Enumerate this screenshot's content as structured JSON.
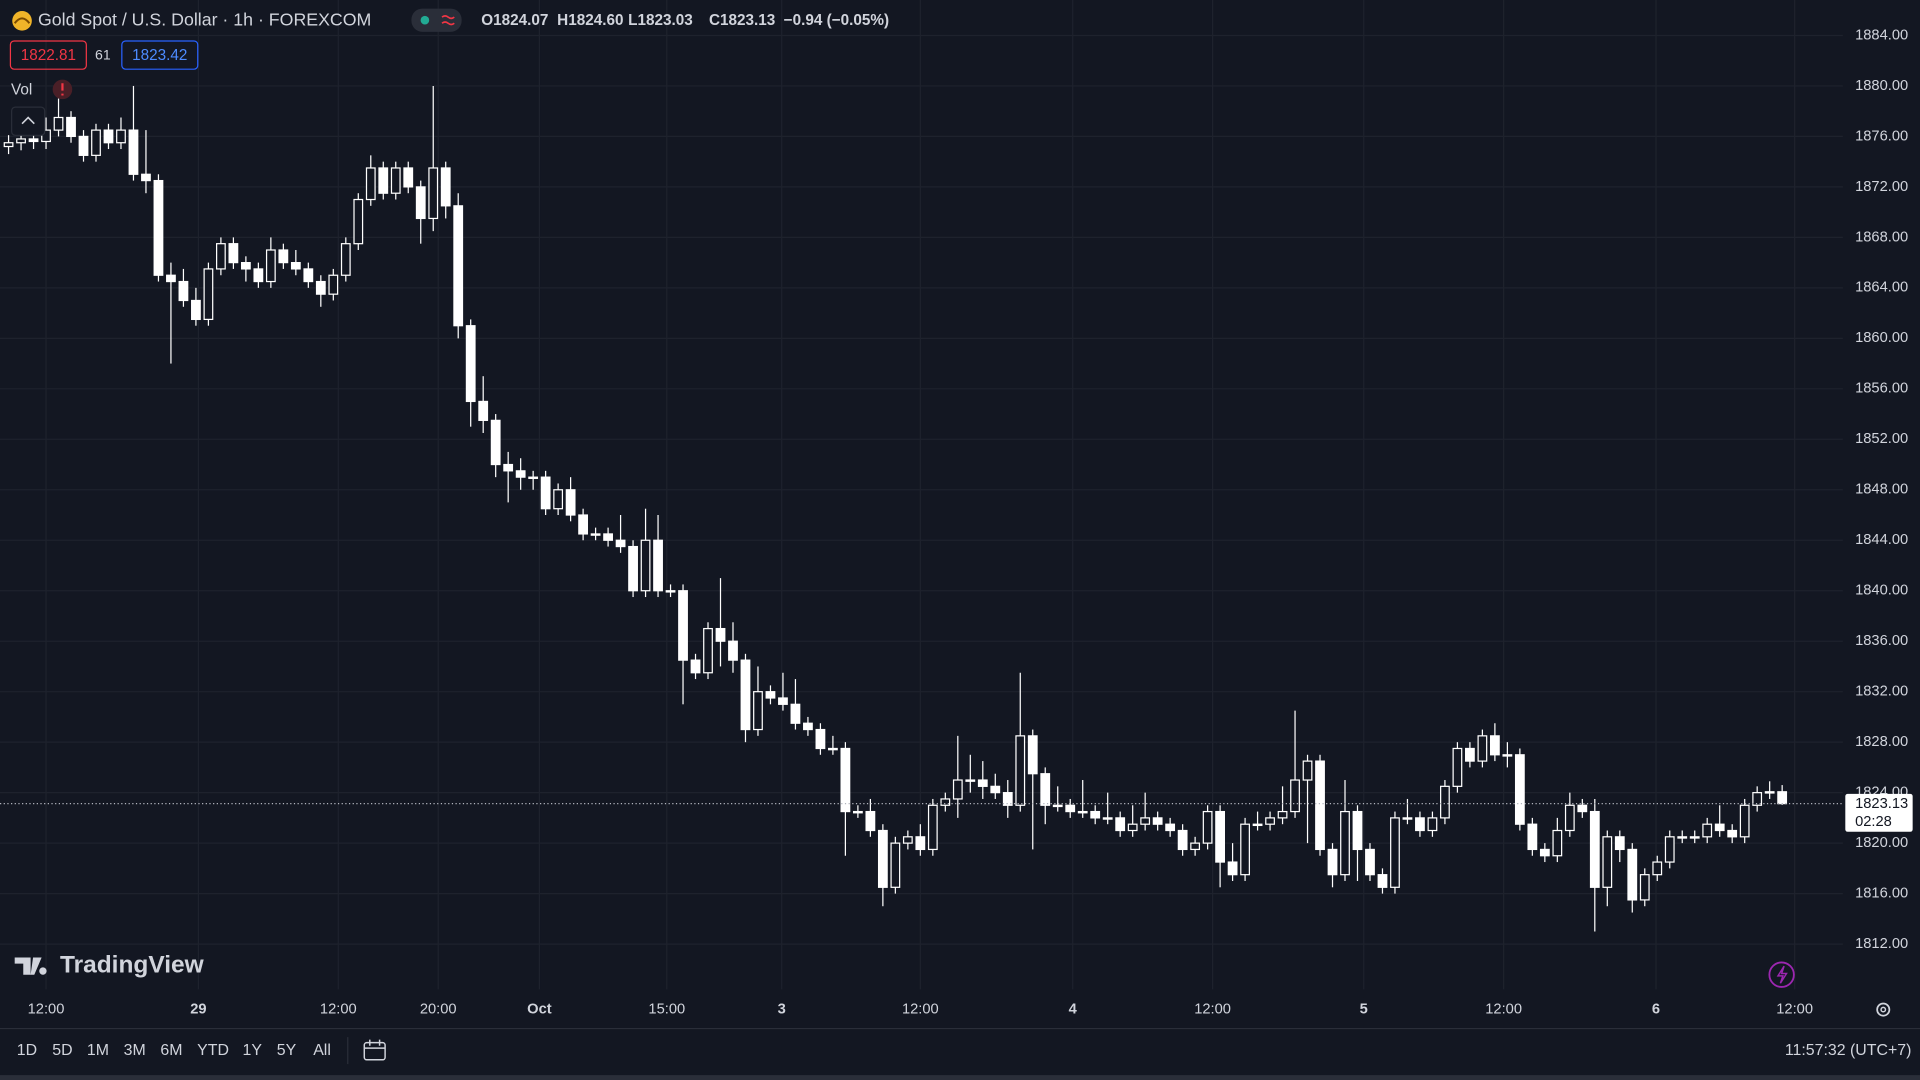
{
  "header": {
    "legend": {
      "open": "O1824.07",
      "high": "H1824.60",
      "low": "L1823.03",
      "close": "C1823.13",
      "change": "−0.94 (−0.05%)"
    },
    "bid": "1822.81",
    "spread": "61",
    "ask": "1823.42",
    "volume_label": "Vol"
  },
  "logo": "TradingView",
  "toolbar": {
    "ranges": [
      "1D",
      "5D",
      "1M",
      "3M",
      "6M",
      "YTD",
      "1Y",
      "5Y",
      "All"
    ],
    "clock": "11:57:32 (UTC+7)"
  },
  "chart_data": {
    "type": "candlestick",
    "title": "Gold Spot / U.S. Dollar · 1h · FOREXCOM",
    "up_color": "#131722",
    "down_color": "#ffffff",
    "wick_color": "#ffffff",
    "grid": true,
    "ylim": [
      1808.41,
      1886.81
    ],
    "yticks": [
      {
        "value": 1812,
        "label": "1812.00"
      },
      {
        "value": 1816,
        "label": "1816.00"
      },
      {
        "value": 1820,
        "label": "1820.00"
      },
      {
        "value": 1824,
        "label": "1824.00"
      },
      {
        "value": 1828,
        "label": "1828.00"
      },
      {
        "value": 1832,
        "label": "1832.00"
      },
      {
        "value": 1836,
        "label": "1836.00"
      },
      {
        "value": 1840,
        "label": "1840.00"
      },
      {
        "value": 1844,
        "label": "1844.00"
      },
      {
        "value": 1848,
        "label": "1848.00"
      },
      {
        "value": 1852,
        "label": "1852.00"
      },
      {
        "value": 1856,
        "label": "1856.00"
      },
      {
        "value": 1860,
        "label": "1860.00"
      },
      {
        "value": 1864,
        "label": "1864.00"
      },
      {
        "value": 1868,
        "label": "1868.00"
      },
      {
        "value": 1872,
        "label": "1872.00"
      },
      {
        "value": 1876,
        "label": "1876.00"
      },
      {
        "value": 1880,
        "label": "1880.00"
      },
      {
        "value": 1884,
        "label": "1884.00"
      }
    ],
    "xlim": [
      -0.686,
      146.86
    ],
    "xticks": [
      {
        "value": 3.0,
        "label": "12:00"
      },
      {
        "value": 15.2,
        "label": "29"
      },
      {
        "value": 26.4,
        "label": "12:00"
      },
      {
        "value": 34.4,
        "label": "20:00"
      },
      {
        "value": 42.5,
        "label": "Oct"
      },
      {
        "value": 52.7,
        "label": "15:00"
      },
      {
        "value": 61.9,
        "label": "3"
      },
      {
        "value": 73.0,
        "label": "12:00"
      },
      {
        "value": 85.2,
        "label": "4"
      },
      {
        "value": 96.4,
        "label": "12:00"
      },
      {
        "value": 108.5,
        "label": "5"
      },
      {
        "value": 119.7,
        "label": "12:00"
      },
      {
        "value": 131.9,
        "label": "6"
      },
      {
        "value": 143.0,
        "label": "12:00"
      }
    ],
    "last_price": 1823.13,
    "countdown": "02:28",
    "open": [
      1875.2,
      1875.5,
      1875.8,
      1875.6,
      1876.5,
      1877.5,
      1876.0,
      1874.5,
      1876.5,
      1875.5,
      1876.5,
      1873.0,
      1872.5,
      1865.0,
      1864.5,
      1863.0,
      1861.5,
      1865.5,
      1867.5,
      1866.0,
      1865.5,
      1864.5,
      1867.0,
      1866.0,
      1865.5,
      1864.5,
      1863.5,
      1865.0,
      1867.5,
      1871.0,
      1873.5,
      1871.5,
      1873.5,
      1872.0,
      1869.5,
      1873.5,
      1870.5,
      1861.0,
      1855.0,
      1853.5,
      1850.0,
      1849.5,
      1849.0,
      1849.0,
      1846.5,
      1848.0,
      1846.0,
      1844.5,
      1844.5,
      1844.0,
      1843.5,
      1840.0,
      1844.0,
      1840.0,
      1840.0,
      1834.5,
      1833.5,
      1837.0,
      1836.0,
      1834.5,
      1829.0,
      1832.0,
      1831.5,
      1831.0,
      1829.5,
      1829.0,
      1827.5,
      1827.5,
      1822.5,
      1822.5,
      1821.0,
      1816.5,
      1820.0,
      1820.5,
      1819.5,
      1823.0,
      1823.5,
      1825.0,
      1825.0,
      1824.5,
      1824.0,
      1823.0,
      1828.5,
      1825.5,
      1823.0,
      1823.0,
      1822.5,
      1822.5,
      1822.0,
      1822.0,
      1821.0,
      1821.5,
      1822.0,
      1821.5,
      1821.0,
      1819.5,
      1820.0,
      1822.5,
      1818.5,
      1817.5,
      1821.5,
      1821.5,
      1822.0,
      1822.5,
      1825.0,
      1826.5,
      1819.5,
      1817.5,
      1822.5,
      1819.5,
      1817.5,
      1816.5,
      1822.0,
      1822.0,
      1821.0,
      1822.0,
      1824.5,
      1827.5,
      1826.5,
      1828.5,
      1827.0,
      1827.0,
      1821.5,
      1819.5,
      1819.0,
      1821.0,
      1823.0,
      1822.5,
      1816.5,
      1820.5,
      1819.5,
      1815.5,
      1817.5,
      1818.5,
      1820.5,
      1820.5,
      1820.5,
      1821.5,
      1821.0,
      1820.5,
      1823.0,
      1824.0,
      1824.07
    ],
    "high": [
      1876.1,
      1876.4,
      1876.4,
      1877.5,
      1879.0,
      1878.0,
      1876.5,
      1877.0,
      1877.0,
      1877.5,
      1880.0,
      1876.5,
      1873.0,
      1866.0,
      1865.5,
      1864.0,
      1866.0,
      1868.0,
      1868.0,
      1866.5,
      1866.0,
      1868.0,
      1867.5,
      1867.0,
      1866.0,
      1865.0,
      1865.5,
      1868.0,
      1871.5,
      1874.5,
      1874.0,
      1874.0,
      1874.0,
      1872.5,
      1880.0,
      1874.0,
      1871.5,
      1861.5,
      1857.0,
      1854.0,
      1851.0,
      1850.5,
      1849.5,
      1849.5,
      1848.5,
      1849.0,
      1846.5,
      1845.0,
      1845.0,
      1846.0,
      1844.0,
      1846.5,
      1846.0,
      1840.5,
      1840.5,
      1835.0,
      1837.5,
      1841.0,
      1837.5,
      1835.0,
      1834.0,
      1832.5,
      1833.5,
      1833.0,
      1830.0,
      1829.5,
      1828.5,
      1828.0,
      1823.0,
      1823.5,
      1821.5,
      1820.5,
      1821.0,
      1821.5,
      1823.5,
      1824.0,
      1828.5,
      1827.0,
      1826.5,
      1825.5,
      1825.0,
      1833.5,
      1829.0,
      1826.0,
      1824.5,
      1823.5,
      1825.0,
      1823.0,
      1824.0,
      1822.5,
      1823.0,
      1824.0,
      1822.5,
      1822.0,
      1821.5,
      1820.5,
      1823.0,
      1823.0,
      1820.0,
      1822.0,
      1822.5,
      1822.5,
      1824.5,
      1830.5,
      1827.0,
      1827.0,
      1820.0,
      1825.0,
      1823.0,
      1820.0,
      1818.0,
      1822.5,
      1823.5,
      1822.5,
      1822.5,
      1825.0,
      1828.0,
      1828.0,
      1829.0,
      1829.5,
      1828.0,
      1827.5,
      1822.0,
      1820.0,
      1822.0,
      1824.0,
      1823.5,
      1823.5,
      1821.0,
      1821.0,
      1820.0,
      1818.0,
      1819.0,
      1821.0,
      1821.0,
      1821.0,
      1822.0,
      1823.0,
      1821.5,
      1823.5,
      1824.5,
      1824.9,
      1824.6
    ],
    "low": [
      1874.6,
      1874.9,
      1875.0,
      1875.0,
      1876.0,
      1875.5,
      1874.0,
      1874.0,
      1875.0,
      1875.0,
      1872.5,
      1871.5,
      1864.5,
      1858.0,
      1862.5,
      1861.0,
      1861.0,
      1865.0,
      1865.5,
      1864.5,
      1864.0,
      1864.0,
      1865.5,
      1865.0,
      1864.0,
      1862.5,
      1863.0,
      1864.5,
      1867.0,
      1870.5,
      1871.0,
      1871.0,
      1871.5,
      1867.5,
      1868.5,
      1869.5,
      1860.0,
      1853.0,
      1852.5,
      1849.0,
      1847.0,
      1848.0,
      1848.0,
      1846.0,
      1846.0,
      1845.5,
      1844.0,
      1844.0,
      1843.5,
      1843.0,
      1839.5,
      1839.5,
      1839.5,
      1839.5,
      1831.0,
      1833.0,
      1833.0,
      1834.0,
      1833.5,
      1828.0,
      1828.5,
      1831.0,
      1830.5,
      1829.0,
      1828.5,
      1827.0,
      1827.0,
      1819.0,
      1822.0,
      1820.5,
      1815.0,
      1816.0,
      1819.5,
      1819.0,
      1819.0,
      1822.5,
      1822.0,
      1824.0,
      1823.5,
      1823.5,
      1822.0,
      1822.5,
      1819.5,
      1821.5,
      1822.5,
      1822.0,
      1822.0,
      1821.5,
      1821.5,
      1820.5,
      1820.5,
      1821.0,
      1821.0,
      1820.5,
      1819.0,
      1819.0,
      1819.5,
      1816.5,
      1817.0,
      1817.0,
      1821.0,
      1821.0,
      1821.5,
      1822.0,
      1820.0,
      1819.0,
      1816.5,
      1817.0,
      1817.0,
      1817.0,
      1816.0,
      1816.0,
      1821.5,
      1820.5,
      1820.5,
      1821.5,
      1824.0,
      1826.0,
      1826.0,
      1826.5,
      1826.0,
      1821.0,
      1819.0,
      1818.5,
      1818.5,
      1820.5,
      1822.0,
      1813.0,
      1815.0,
      1818.5,
      1814.5,
      1815.0,
      1817.0,
      1818.0,
      1820.0,
      1820.0,
      1820.0,
      1820.5,
      1820.0,
      1820.0,
      1822.5,
      1823.5,
      1823.03
    ],
    "close": [
      1875.5,
      1875.8,
      1875.6,
      1876.5,
      1877.5,
      1876.0,
      1874.5,
      1876.5,
      1875.5,
      1876.5,
      1873.0,
      1872.5,
      1865.0,
      1864.5,
      1863.0,
      1861.5,
      1865.5,
      1867.5,
      1866.0,
      1865.5,
      1864.5,
      1867.0,
      1866.0,
      1865.5,
      1864.5,
      1863.5,
      1865.0,
      1867.5,
      1871.0,
      1873.5,
      1871.5,
      1873.5,
      1872.0,
      1869.5,
      1873.5,
      1870.5,
      1861.0,
      1855.0,
      1853.5,
      1850.0,
      1849.5,
      1849.0,
      1849.0,
      1846.5,
      1848.0,
      1846.0,
      1844.5,
      1844.5,
      1844.0,
      1843.5,
      1840.0,
      1844.0,
      1840.0,
      1840.0,
      1834.5,
      1833.5,
      1837.0,
      1836.0,
      1834.5,
      1829.0,
      1832.0,
      1831.5,
      1831.0,
      1829.5,
      1829.0,
      1827.5,
      1827.5,
      1822.5,
      1822.5,
      1821.0,
      1816.5,
      1820.0,
      1820.5,
      1819.5,
      1823.0,
      1823.5,
      1825.0,
      1825.0,
      1824.5,
      1824.0,
      1823.0,
      1828.5,
      1825.5,
      1823.0,
      1823.0,
      1822.5,
      1822.5,
      1822.0,
      1822.0,
      1821.0,
      1821.5,
      1822.0,
      1821.5,
      1821.0,
      1819.5,
      1820.0,
      1822.5,
      1818.5,
      1817.5,
      1821.5,
      1821.5,
      1822.0,
      1822.5,
      1825.0,
      1826.5,
      1819.5,
      1817.5,
      1822.5,
      1819.5,
      1817.5,
      1816.5,
      1822.0,
      1822.0,
      1821.0,
      1822.0,
      1824.5,
      1827.5,
      1826.5,
      1828.5,
      1827.0,
      1827.0,
      1821.5,
      1819.5,
      1819.0,
      1821.0,
      1823.0,
      1822.5,
      1816.5,
      1820.5,
      1819.5,
      1815.5,
      1817.5,
      1818.5,
      1820.5,
      1820.5,
      1820.5,
      1821.5,
      1821.0,
      1820.5,
      1823.0,
      1824.0,
      1824.07,
      1823.13
    ]
  }
}
